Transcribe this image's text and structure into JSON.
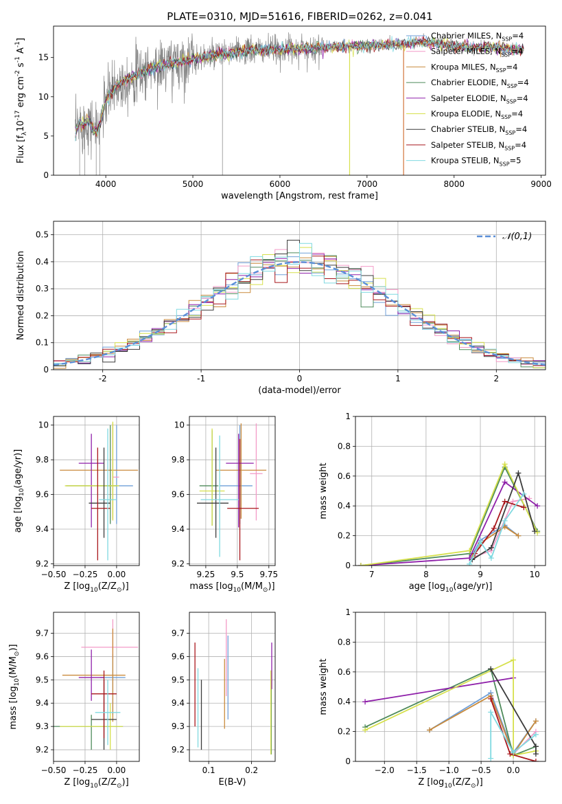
{
  "figure": {
    "title": "PLATE=0310, MJD=51616, FIBERID=0262, z=0.041"
  },
  "series_names": [
    "Chabrier MILES, N$_{SSP}$=4",
    "Salpeter MILES, N$_{SSP}$=4",
    "Kroupa MILES, N$_{SSP}$=4",
    "Chabrier ELODIE, N$_{SSP}$=4",
    "Salpeter ELODIE, N$_{SSP}$=4",
    "Kroupa ELODIE, N$_{SSP}$=4",
    "Chabrier STELIB, N$_{SSP}$=4",
    "Salpeter STELIB, N$_{SSP}$=4",
    "Kroupa STELIB, N$_{SSP}$=5"
  ],
  "colors": [
    "#6f9fd8",
    "#f39ac7",
    "#c98a3b",
    "#4d8a5a",
    "#8e1fa9",
    "#d6e04c",
    "#3b3b3b",
    "#a8161b",
    "#7fd9e0"
  ],
  "chart_data": [
    {
      "id": "spectrum",
      "type": "line",
      "title": "PLATE=0310, MJD=51616, FIBERID=0262, z=0.041",
      "xlabel": "wavelength [Angstrom, rest frame]",
      "ylabel": "Flux [f$_\\lambda$10$^{-17}$ erg cm$^{-2}$ s$^{-1}$ A$^{-1}$]",
      "xlim": [
        3400,
        9050
      ],
      "ylim": [
        0,
        19
      ],
      "xticks": [
        4000,
        5000,
        6000,
        7000,
        8000,
        9000
      ],
      "yticks": [
        0,
        5,
        10,
        15
      ],
      "grid": false,
      "legend": "upper right",
      "data_color": "#808080",
      "data_trend": {
        "x": [
          3650,
          3700,
          3750,
          3800,
          3850,
          3900,
          3950,
          4000,
          4100,
          4200,
          4300,
          4400,
          4500,
          4600,
          4800,
          5000,
          5200,
          5400,
          5600,
          5800,
          6000,
          6200,
          6400,
          6600,
          6800,
          7000,
          7200,
          7400,
          7600,
          7800,
          8000,
          8200,
          8400,
          8600,
          8800
        ],
        "y": [
          5.2,
          6.8,
          6.4,
          7.2,
          6.0,
          5.5,
          7.0,
          9.5,
          11.2,
          12.0,
          12.6,
          13.0,
          13.5,
          13.8,
          14.3,
          14.8,
          15.2,
          15.5,
          15.8,
          15.9,
          16.0,
          16.1,
          16.2,
          16.3,
          16.4,
          16.5,
          16.6,
          16.7,
          17.0,
          16.8,
          16.5,
          16.2,
          16.4,
          16.1,
          16.0
        ]
      },
      "model_dropouts": [
        {
          "series": "Kroupa ELODIE, N$_{SSP}$=4",
          "x": 6800,
          "y": 0
        },
        {
          "series": "Salpeter STELIB, N$_{SSP}$=4",
          "x": 7420,
          "y": 0
        }
      ]
    },
    {
      "id": "residual-histogram",
      "type": "bar",
      "xlabel": "(data-model)/error",
      "ylabel": "Normed distribution",
      "xlim": [
        -2.5,
        2.5
      ],
      "ylim": [
        0,
        0.55
      ],
      "xticks": [
        -2,
        -1,
        0,
        1,
        2
      ],
      "yticks": [
        0,
        0.1,
        0.2,
        0.3,
        0.4,
        0.5
      ],
      "grid": true,
      "legend": "upper right",
      "bin_width": 0.125,
      "reference_curve": {
        "name": "$\\mathcal{N}(0,1)$",
        "mean": 0,
        "sigma": 1,
        "color": "#5b8fd8"
      }
    },
    {
      "id": "age-vs-metallicity",
      "type": "scatter",
      "xlabel": "Z [log$_{10}$(Z/Z$_\\odot$)]",
      "ylabel": "age  [log$_{10}$(age/yr)]",
      "xlim": [
        -0.5,
        0.18
      ],
      "ylim": [
        9.19,
        10.05
      ],
      "xticks": [
        -0.5,
        -0.25,
        0.0
      ],
      "xtick_labels": [
        "−0.50",
        "−0.25",
        "0.00"
      ],
      "yticks": [
        9.2,
        9.4,
        9.6,
        9.8,
        10.0
      ],
      "grid": true,
      "points": [
        {
          "x": 0.0,
          "y": 9.65,
          "xerr": [
            0.13,
            0.13
          ],
          "yerr": [
            0.22,
            0.35
          ]
        },
        {
          "x": -0.03,
          "y": 9.7,
          "xerr": [
            0.0,
            0.05
          ],
          "yerr": [
            0.25,
            0.3
          ]
        },
        {
          "x": -0.03,
          "y": 9.74,
          "xerr": [
            0.42,
            0.2
          ],
          "yerr": [
            0.28,
            0.27
          ]
        },
        {
          "x": -0.05,
          "y": 9.65,
          "xerr": [
            0.35,
            0.05
          ],
          "yerr": [
            0.22,
            0.35
          ]
        },
        {
          "x": -0.2,
          "y": 9.78,
          "xerr": [
            0.1,
            0.1
          ],
          "yerr": [
            0.37,
            0.17
          ]
        },
        {
          "x": -0.03,
          "y": 9.65,
          "xerr": [
            0.38,
            0.05
          ],
          "yerr": [
            0.2,
            0.37
          ]
        },
        {
          "x": -0.1,
          "y": 9.55,
          "xerr": [
            0.12,
            0.05
          ],
          "yerr": [
            0.2,
            0.32
          ]
        },
        {
          "x": -0.15,
          "y": 9.52,
          "xerr": [
            0.05,
            0.1
          ],
          "yerr": [
            0.3,
            0.35
          ]
        },
        {
          "x": -0.07,
          "y": 9.57,
          "xerr": [
            0.07,
            0.07
          ],
          "yerr": [
            0.35,
            0.41
          ]
        }
      ]
    },
    {
      "id": "age-vs-mass",
      "type": "scatter",
      "xlabel": "mass [log$_{10}$(M/M$_\\odot$)]",
      "ylabel": "",
      "xlim": [
        9.12,
        9.8
      ],
      "ylim": [
        9.19,
        10.05
      ],
      "xticks": [
        9.25,
        9.5,
        9.75
      ],
      "yticks": [
        9.2,
        9.4,
        9.6,
        9.8,
        10.0
      ],
      "grid": true,
      "points": [
        {
          "x": 9.52,
          "y": 9.65,
          "xerr": [
            0.16,
            0.1
          ],
          "yerr": [
            0.22,
            0.35
          ]
        },
        {
          "x": 9.65,
          "y": 9.72,
          "xerr": [
            0.05,
            0.05
          ],
          "yerr": [
            0.27,
            0.29
          ]
        },
        {
          "x": 9.53,
          "y": 9.74,
          "xerr": [
            0.2,
            0.2
          ],
          "yerr": [
            0.28,
            0.27
          ]
        },
        {
          "x": 9.3,
          "y": 9.65,
          "xerr": [
            0.1,
            0.05
          ],
          "yerr": [
            0.23,
            0.32
          ]
        },
        {
          "x": 9.51,
          "y": 9.78,
          "xerr": [
            0.1,
            0.12
          ],
          "yerr": [
            0.37,
            0.17
          ]
        },
        {
          "x": 9.3,
          "y": 9.62,
          "xerr": [
            0.1,
            0.1
          ],
          "yerr": [
            0.2,
            0.36
          ]
        },
        {
          "x": 9.33,
          "y": 9.55,
          "xerr": [
            0.15,
            0.1
          ],
          "yerr": [
            0.2,
            0.32
          ]
        },
        {
          "x": 9.52,
          "y": 9.52,
          "xerr": [
            0.1,
            0.15
          ],
          "yerr": [
            0.3,
            0.4
          ]
        },
        {
          "x": 9.36,
          "y": 9.57,
          "xerr": [
            0.15,
            0.15
          ],
          "yerr": [
            0.33,
            0.37
          ]
        }
      ]
    },
    {
      "id": "mass-weight-vs-age",
      "type": "line",
      "xlabel": "age  [log$_{10}$(age/yr)]",
      "ylabel": "mass weight",
      "xlim": [
        6.7,
        10.2
      ],
      "ylim": [
        0,
        1.0
      ],
      "xticks": [
        7,
        8,
        9,
        10
      ],
      "yticks": [
        0.0,
        0.2,
        0.4,
        0.6,
        0.8,
        1.0
      ],
      "grid": true,
      "series": [
        {
          "x": [
            8.85,
            9.0,
            9.45,
            9.7
          ],
          "y": [
            0.07,
            0.17,
            0.27,
            0.2
          ]
        },
        {
          "x": [
            8.9,
            9.2,
            9.6,
            9.9
          ],
          "y": [
            0.06,
            0.1,
            0.43,
            0.45
          ]
        },
        {
          "x": [
            8.85,
            9.0,
            9.45,
            9.7
          ],
          "y": [
            0.06,
            0.15,
            0.26,
            0.2
          ]
        },
        {
          "x": [
            6.8,
            8.8,
            9.45,
            10.05
          ],
          "y": [
            0.0,
            0.08,
            0.66,
            0.23
          ]
        },
        {
          "x": [
            6.8,
            8.8,
            9.45,
            10.05
          ],
          "y": [
            0.0,
            0.05,
            0.56,
            0.4
          ]
        },
        {
          "x": [
            6.8,
            8.8,
            9.45,
            10.05
          ],
          "y": [
            0.0,
            0.1,
            0.68,
            0.22
          ]
        },
        {
          "x": [
            8.85,
            9.2,
            9.7,
            10.0
          ],
          "y": [
            0.04,
            0.12,
            0.62,
            0.23
          ]
        },
        {
          "x": [
            8.9,
            9.25,
            9.45,
            9.8
          ],
          "y": [
            0.08,
            0.25,
            0.43,
            0.39
          ]
        },
        {
          "x": [
            8.8,
            9.0,
            9.2,
            9.45,
            9.8
          ],
          "y": [
            0.01,
            0.16,
            0.05,
            0.3,
            0.48
          ]
        }
      ]
    },
    {
      "id": "mass-vs-metallicity",
      "type": "scatter",
      "xlabel": "Z [log$_{10}$(Z/Z$_\\odot$)]",
      "ylabel": "mass [log$_{10}$(M/M$_\\odot$)]",
      "xlim": [
        -0.5,
        0.18
      ],
      "ylim": [
        9.15,
        9.79
      ],
      "xticks": [
        -0.5,
        -0.25,
        0.0
      ],
      "xtick_labels": [
        "−0.50",
        "−0.25",
        "0.00"
      ],
      "yticks": [
        9.2,
        9.3,
        9.4,
        9.5,
        9.6,
        9.7
      ],
      "grid": true,
      "points": [
        {
          "x": -0.03,
          "y": 9.51,
          "xerr": [
            0.1,
            0.1
          ],
          "yerr": [
            0.16,
            0.1
          ]
        },
        {
          "x": -0.03,
          "y": 9.64,
          "xerr": [
            0.25,
            0.2
          ],
          "yerr": [
            0.05,
            0.12
          ]
        },
        {
          "x": -0.03,
          "y": 9.52,
          "xerr": [
            0.4,
            0.1
          ],
          "yerr": [
            0.2,
            0.2
          ]
        },
        {
          "x": -0.2,
          "y": 9.3,
          "xerr": [
            0.3,
            0.25
          ],
          "yerr": [
            0.1,
            0.05
          ]
        },
        {
          "x": -0.2,
          "y": 9.51,
          "xerr": [
            0.1,
            0.1
          ],
          "yerr": [
            0.1,
            0.12
          ]
        },
        {
          "x": -0.05,
          "y": 9.3,
          "xerr": [
            0.4,
            0.1
          ],
          "yerr": [
            0.1,
            0.1
          ]
        },
        {
          "x": -0.1,
          "y": 9.33,
          "xerr": [
            0.1,
            0.1
          ],
          "yerr": [
            0.13,
            0.17
          ]
        },
        {
          "x": -0.1,
          "y": 9.44,
          "xerr": [
            0.1,
            0.1
          ],
          "yerr": [
            0.19,
            0.1
          ]
        },
        {
          "x": -0.07,
          "y": 9.36,
          "xerr": [
            0.1,
            0.1
          ],
          "yerr": [
            0.14,
            0.14
          ]
        }
      ]
    },
    {
      "id": "mass-vs-ebv",
      "type": "scatter",
      "xlabel": "E(B-V)",
      "ylabel": "",
      "xlim": [
        0.055,
        0.255
      ],
      "ylim": [
        9.15,
        9.79
      ],
      "xticks": [
        0.1,
        0.2
      ],
      "yticks": [
        9.2,
        9.3,
        9.4,
        9.5,
        9.6,
        9.7
      ],
      "grid": true,
      "points": [
        {
          "x": 0.145,
          "y": 9.51,
          "yerr": [
            0.18,
            0.18
          ]
        },
        {
          "x": 0.141,
          "y": 9.59,
          "yerr": [
            0.16,
            0.17
          ]
        },
        {
          "x": 0.137,
          "y": 9.44,
          "yerr": [
            0.15,
            0.15
          ]
        },
        {
          "x": 0.246,
          "y": 9.36,
          "yerr": [
            0.18,
            0.18
          ]
        },
        {
          "x": 0.247,
          "y": 9.56,
          "yerr": [
            0.1,
            0.1
          ]
        },
        {
          "x": 0.245,
          "y": 9.36,
          "yerr": [
            0.18,
            0.18
          ]
        },
        {
          "x": 0.083,
          "y": 9.35,
          "yerr": [
            0.15,
            0.15
          ]
        },
        {
          "x": 0.068,
          "y": 9.48,
          "yerr": [
            0.18,
            0.18
          ]
        },
        {
          "x": 0.075,
          "y": 9.38,
          "yerr": [
            0.17,
            0.17
          ]
        }
      ]
    },
    {
      "id": "mass-weight-vs-metallicity",
      "type": "line",
      "xlabel": "Z [log$_{10}$(Z/Z$_\\odot$)]",
      "ylabel": "mass weight",
      "xlim": [
        -2.45,
        0.5
      ],
      "ylim": [
        0,
        1.0
      ],
      "xticks": [
        -2.0,
        -1.5,
        -1.0,
        -0.5,
        0.0
      ],
      "xtick_labels": [
        "−2.0",
        "−1.5",
        "−1.0",
        "−0.5",
        "0.0"
      ],
      "yticks": [
        0.0,
        0.2,
        0.4,
        0.6,
        0.8,
        1.0
      ],
      "grid": true,
      "series": [
        {
          "x": [
            -1.3,
            -0.35,
            0.0,
            0.35
          ],
          "y": [
            0.21,
            0.46,
            0.06,
            0.27
          ]
        },
        {
          "x": [
            -0.35,
            0.0,
            0.35
          ],
          "y": [
            0.43,
            0.05,
            0.2
          ]
        },
        {
          "x": [
            -1.3,
            -0.35,
            0.0,
            0.35
          ],
          "y": [
            0.21,
            0.44,
            0.05,
            0.27
          ]
        },
        {
          "x": [
            -2.3,
            -0.35,
            0.0,
            0.35
          ],
          "y": [
            0.23,
            0.62,
            0.04,
            0.1
          ]
        },
        {
          "x": [
            -2.3,
            0.0
          ],
          "y": [
            0.4,
            0.56
          ]
        },
        {
          "x": [
            -2.3,
            0.0,
            0.0,
            0.35
          ],
          "y": [
            0.21,
            0.68,
            0.04,
            0.07
          ]
        },
        {
          "x": [
            -0.35,
            0.35,
            0.35
          ],
          "y": [
            0.62,
            0.1,
            0.05
          ]
        },
        {
          "x": [
            -0.35,
            -0.05,
            0.35
          ],
          "y": [
            0.42,
            0.05,
            0.0
          ]
        },
        {
          "x": [
            -0.35,
            -0.35,
            0.0,
            0.35
          ],
          "y": [
            0.02,
            0.33,
            0.06,
            0.18
          ]
        }
      ]
    }
  ]
}
